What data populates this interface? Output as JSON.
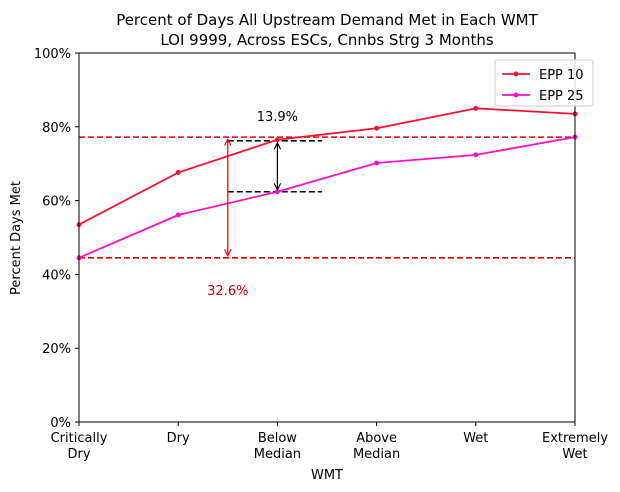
{
  "chart_data": {
    "type": "line",
    "title": "Percent of Days All Upstream Demand Met in Each WMT",
    "subtitle": "LOI 9999, Across ESCs, Cnnbs Strg 3 Months",
    "xlabel": "WMT",
    "ylabel": "Percent Days Met",
    "categories": [
      [
        "Critically",
        "Dry"
      ],
      [
        "Dry"
      ],
      [
        "Below",
        "Median"
      ],
      [
        "Above",
        "Median"
      ],
      [
        "Wet"
      ],
      [
        "Extremely",
        "Wet"
      ]
    ],
    "yticks": [
      "0%",
      "20%",
      "40%",
      "60%",
      "80%",
      "100%"
    ],
    "ylim": [
      0,
      100
    ],
    "legend_position": "top-right",
    "series": [
      {
        "name": "EPP 10",
        "color": "#ff1030",
        "values": [
          53.5,
          67.6,
          76.5,
          79.6,
          85.0,
          83.5
        ]
      },
      {
        "name": "EPP 25",
        "color": "#ff10c8",
        "values": [
          44.5,
          56.1,
          62.4,
          70.2,
          72.4,
          77.2
        ]
      }
    ],
    "reference_lines": [
      {
        "y": 77.2,
        "color": "#e00000",
        "style": "dashed",
        "span": "full"
      },
      {
        "y": 44.5,
        "color": "#e00000",
        "style": "dashed",
        "span": "full"
      },
      {
        "y": 76.2,
        "color": "#000000",
        "style": "dashed",
        "span": "partial"
      },
      {
        "y": 62.4,
        "color": "#000000",
        "style": "dashed",
        "span": "partial"
      }
    ],
    "annotations": [
      {
        "text": "13.9%",
        "color": "#000000",
        "from": 62.4,
        "to": 76.2
      },
      {
        "text": "32.6%",
        "color": "#e00000",
        "from": 44.5,
        "to": 77.2
      }
    ]
  }
}
